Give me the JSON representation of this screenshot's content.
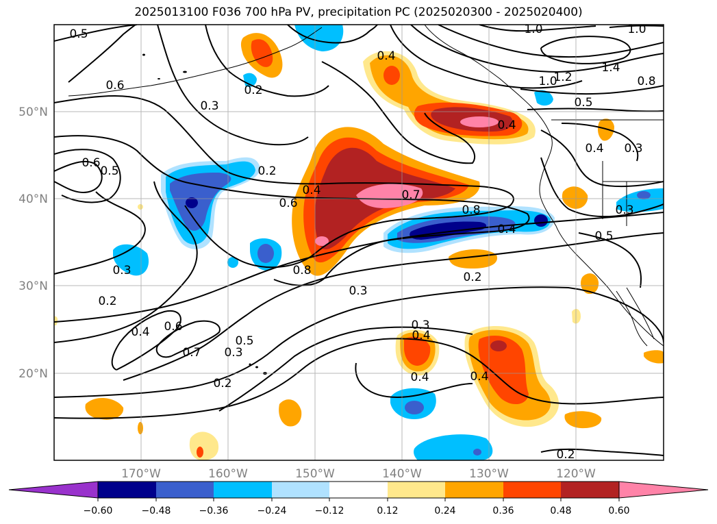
{
  "title": "2025013100 F036 700 hPa PV, precipitation PC (2025020300 - 2025020400)",
  "map": {
    "lat_labels": [
      "50°N",
      "40°N",
      "30°N",
      "20°N"
    ],
    "lon_labels": [
      "170°W",
      "160°W",
      "150°W",
      "140°W",
      "130°W",
      "120°W"
    ],
    "grid": true,
    "axis_label_color": "#808080"
  },
  "contour_labels": [
    "0.5",
    "0.6",
    "0.3",
    "0.6",
    "0.5",
    "0.2",
    "0.2",
    "0.4",
    "0.4",
    "0.6",
    "0.7",
    "0.8",
    "0.4",
    "0.8",
    "0.3",
    "0.3",
    "0.2",
    "0.4",
    "0.6",
    "0.7",
    "0.5",
    "0.3",
    "0.2",
    "0.3",
    "0.4",
    "0.4",
    "1.0",
    "1.0",
    "1.2",
    "1.0",
    "1.4",
    "0.8",
    "0.5",
    "0.4",
    "0.3",
    "0.3",
    "0.5",
    "0.2",
    "0.2",
    "0.4",
    "0.4"
  ],
  "colorbar": {
    "tick_labels": [
      "−0.60",
      "−0.48",
      "−0.36",
      "−0.24",
      "−0.12",
      "0.12",
      "0.24",
      "0.36",
      "0.48",
      "0.60"
    ],
    "colors": [
      "#9932CC",
      "#00008B",
      "#3A5FCD",
      "#00BFFF",
      "#B0E2FF",
      "#FFFFFF",
      "#FFE88C",
      "#FFA500",
      "#FF4500",
      "#B22222",
      "#FF83A8"
    ]
  }
}
